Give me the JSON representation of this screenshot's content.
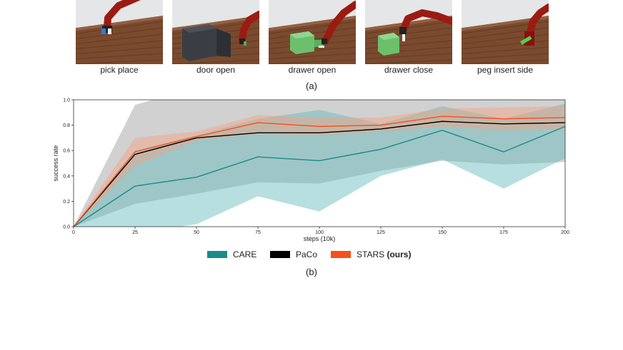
{
  "tasks": [
    {
      "label": "pick place",
      "scene": "pick-place"
    },
    {
      "label": "door open",
      "scene": "door-open"
    },
    {
      "label": "drawer open",
      "scene": "drawer-open"
    },
    {
      "label": "drawer close",
      "scene": "drawer-close"
    },
    {
      "label": "peg insert side",
      "scene": "peg-insert-side"
    }
  ],
  "caption_a": "(a)",
  "caption_b": "(b)",
  "legend": [
    {
      "name": "CARE",
      "suffix": "",
      "color": "#1a8a8a"
    },
    {
      "name": "PaCo",
      "suffix": "",
      "color": "#000000"
    },
    {
      "name": "STARS ",
      "suffix": "(ours)",
      "color": "#f4511e"
    }
  ],
  "chart_data": {
    "type": "line",
    "title": "",
    "xlabel": "steps (10k)",
    "ylabel": "success rate",
    "xlim": [
      0,
      200
    ],
    "ylim": [
      0,
      1.0
    ],
    "x_ticks": [
      "0",
      "25",
      "50",
      "75",
      "100",
      "125",
      "150",
      "175",
      "200"
    ],
    "y_ticks": [
      "0.0",
      "0.2",
      "0.4",
      "0.6",
      "0.8",
      "1.0"
    ],
    "grid": false,
    "x": [
      0,
      25,
      50,
      75,
      100,
      125,
      150,
      175,
      200
    ],
    "series": [
      {
        "name": "CARE",
        "color": "#1a8a8a",
        "band_color": "#5fb8b8",
        "mean": [
          0.0,
          0.32,
          0.39,
          0.55,
          0.52,
          0.61,
          0.76,
          0.59,
          0.79
        ],
        "lower": [
          0.0,
          -0.05,
          0.02,
          0.24,
          0.12,
          0.4,
          0.53,
          0.3,
          0.54
        ],
        "upper": [
          0.0,
          0.6,
          0.72,
          0.85,
          0.92,
          0.81,
          0.95,
          0.85,
          0.97
        ]
      },
      {
        "name": "PaCo",
        "color": "#000000",
        "band_color": "#9a9a9a",
        "mean": [
          0.0,
          0.57,
          0.7,
          0.74,
          0.74,
          0.77,
          0.83,
          0.81,
          0.82
        ],
        "lower": [
          0.0,
          0.18,
          0.26,
          0.35,
          0.34,
          0.44,
          0.52,
          0.49,
          0.51
        ],
        "upper": [
          0.0,
          0.96,
          1.1,
          1.12,
          1.12,
          1.1,
          1.1,
          1.1,
          1.1
        ]
      },
      {
        "name": "STARS (ours)",
        "color": "#f4511e",
        "band_color": "#f6a07e",
        "mean": [
          0.0,
          0.59,
          0.71,
          0.82,
          0.79,
          0.8,
          0.87,
          0.85,
          0.86
        ],
        "lower": [
          0.0,
          0.48,
          0.68,
          0.73,
          0.72,
          0.75,
          0.79,
          0.76,
          0.77
        ],
        "upper": [
          0.0,
          0.7,
          0.75,
          0.88,
          0.86,
          0.86,
          0.93,
          0.94,
          0.95
        ]
      }
    ]
  }
}
